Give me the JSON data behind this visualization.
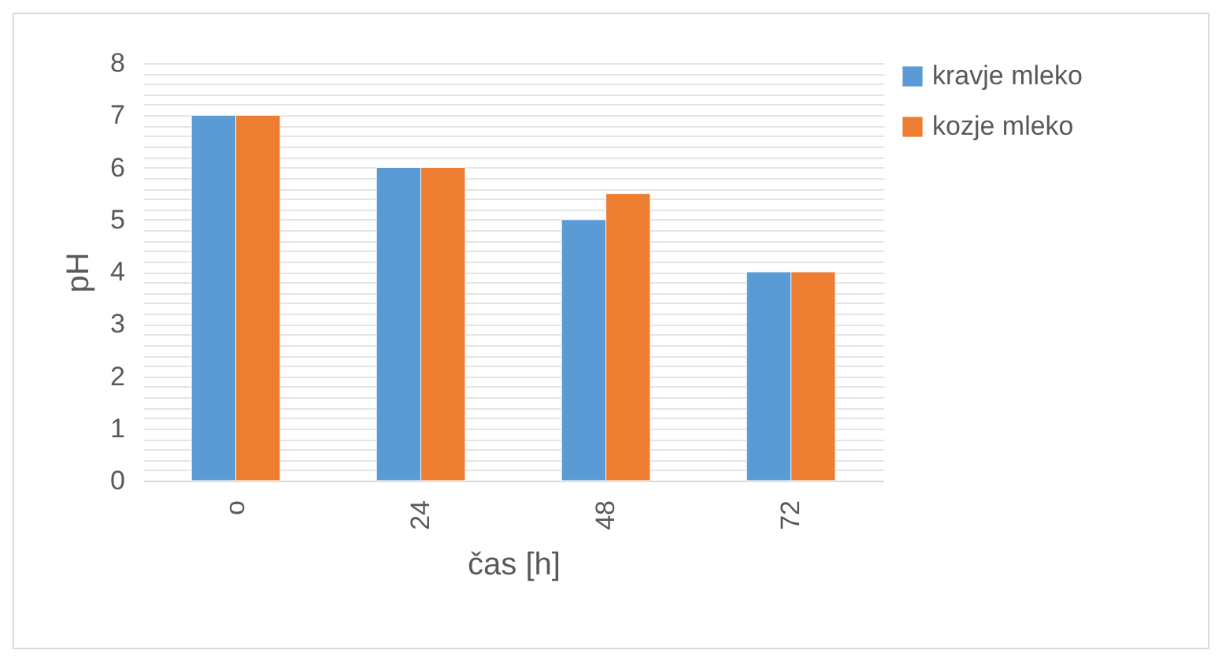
{
  "chart_data": {
    "type": "bar",
    "xlabel": "čas [h]",
    "ylabel": "pH",
    "categories": [
      "o",
      "24",
      "48",
      "72"
    ],
    "series": [
      {
        "name": "kravje mleko",
        "color": "#5b9bd5",
        "values": [
          7,
          6,
          5,
          4
        ]
      },
      {
        "name": "kozje mleko",
        "color": "#ed7d31",
        "values": [
          7,
          6,
          5.5,
          4
        ]
      }
    ],
    "ylim": [
      0,
      8
    ],
    "yticks": [
      0,
      {
        "value": 0.2,
        "label": null
      },
      {
        "value": 0.4,
        "label": null
      },
      {
        "value": 0.6,
        "label": null
      },
      {
        "value": 0.8,
        "label": null
      },
      1,
      {
        "value": 1.2,
        "label": null
      },
      {
        "value": 1.4,
        "label": null
      },
      {
        "value": 1.6,
        "label": null
      },
      {
        "value": 1.8,
        "label": null
      },
      2,
      {
        "value": 2.2,
        "label": null
      },
      {
        "value": 2.4,
        "label": null
      },
      {
        "value": 2.6,
        "label": null
      },
      {
        "value": 2.8,
        "label": null
      },
      3,
      {
        "value": 3.2,
        "label": null
      },
      {
        "value": 3.4,
        "label": null
      },
      {
        "value": 3.6,
        "label": null
      },
      {
        "value": 3.8,
        "label": null
      },
      4,
      {
        "value": 4.2,
        "label": null
      },
      {
        "value": 4.4,
        "label": null
      },
      {
        "value": 4.6,
        "label": null
      },
      {
        "value": 4.8,
        "label": null
      },
      5,
      {
        "value": 5.2,
        "label": null
      },
      {
        "value": 5.4,
        "label": null
      },
      {
        "value": 5.6,
        "label": null
      },
      {
        "value": 5.8,
        "label": null
      },
      6,
      {
        "value": 6.2,
        "label": null
      },
      {
        "value": 6.4,
        "label": null
      },
      {
        "value": 6.6,
        "label": null
      },
      {
        "value": 6.8,
        "label": null
      },
      7,
      {
        "value": 7.2,
        "label": null
      },
      {
        "value": 7.4,
        "label": null
      },
      {
        "value": 7.6,
        "label": null
      },
      {
        "value": 7.8,
        "label": null
      },
      8
    ],
    "grid": "y",
    "legend": "right"
  }
}
